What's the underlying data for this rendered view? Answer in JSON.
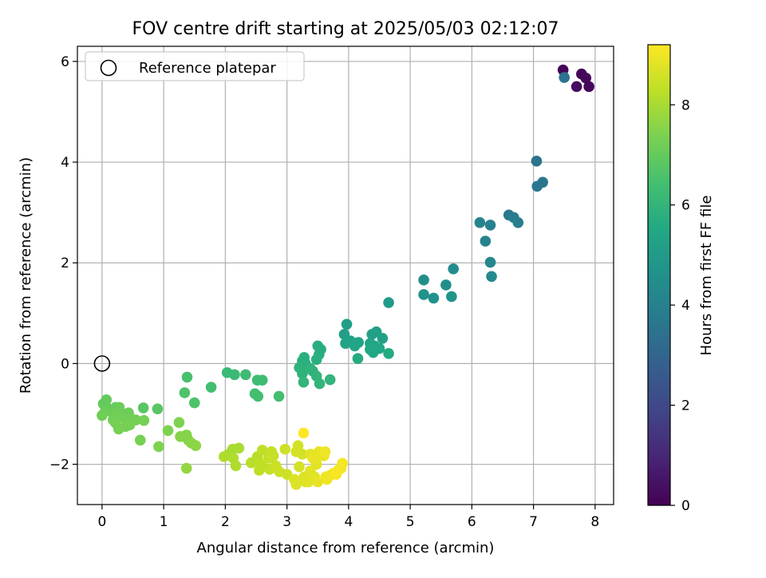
{
  "chart_data": {
    "type": "scatter",
    "title": "FOV centre drift starting at 2025/05/03 02:12:07",
    "xlabel": "Angular distance from reference (arcmin)",
    "ylabel": "Rotation from reference (arcmin)",
    "xlim": [
      -0.4,
      8.3
    ],
    "ylim": [
      -2.8,
      6.3
    ],
    "xticks": [
      0,
      1,
      2,
      3,
      4,
      5,
      6,
      7,
      8
    ],
    "yticks": [
      -2,
      0,
      2,
      4,
      6
    ],
    "grid": true,
    "legend": {
      "placement": "top-left",
      "entries": [
        "Reference platepar"
      ]
    },
    "reference_point": {
      "x": 0,
      "y": 0
    },
    "colorbar": {
      "label": "Hours from first FF file",
      "colormap": "viridis",
      "range": [
        0,
        9.2
      ],
      "ticks": [
        0,
        2,
        4,
        6,
        8
      ]
    },
    "points": [
      {
        "x": 7.48,
        "y": 5.83,
        "c": 0.1
      },
      {
        "x": 7.78,
        "y": 5.75,
        "c": 0.1
      },
      {
        "x": 7.85,
        "y": 5.67,
        "c": 0.2
      },
      {
        "x": 7.9,
        "y": 5.5,
        "c": 0.2
      },
      {
        "x": 7.7,
        "y": 5.5,
        "c": 0.3
      },
      {
        "x": 7.5,
        "y": 5.68,
        "c": 3.5
      },
      {
        "x": 7.05,
        "y": 4.02,
        "c": 3.5
      },
      {
        "x": 7.15,
        "y": 3.6,
        "c": 3.6
      },
      {
        "x": 7.06,
        "y": 3.52,
        "c": 3.6
      },
      {
        "x": 6.6,
        "y": 2.95,
        "c": 3.7
      },
      {
        "x": 6.68,
        "y": 2.9,
        "c": 3.8
      },
      {
        "x": 6.75,
        "y": 2.8,
        "c": 3.9
      },
      {
        "x": 6.3,
        "y": 2.75,
        "c": 4.0
      },
      {
        "x": 6.13,
        "y": 2.8,
        "c": 4.1
      },
      {
        "x": 6.22,
        "y": 2.43,
        "c": 4.1
      },
      {
        "x": 6.3,
        "y": 2.01,
        "c": 4.2
      },
      {
        "x": 6.32,
        "y": 1.73,
        "c": 4.3
      },
      {
        "x": 5.7,
        "y": 1.88,
        "c": 4.4
      },
      {
        "x": 5.22,
        "y": 1.66,
        "c": 4.5
      },
      {
        "x": 5.58,
        "y": 1.56,
        "c": 4.5
      },
      {
        "x": 5.22,
        "y": 1.37,
        "c": 4.6
      },
      {
        "x": 5.38,
        "y": 1.3,
        "c": 4.6
      },
      {
        "x": 5.67,
        "y": 1.33,
        "c": 4.7
      },
      {
        "x": 4.65,
        "y": 1.21,
        "c": 5.0
      },
      {
        "x": 3.97,
        "y": 0.78,
        "c": 5.1
      },
      {
        "x": 3.93,
        "y": 0.58,
        "c": 5.1
      },
      {
        "x": 4.45,
        "y": 0.63,
        "c": 5.2
      },
      {
        "x": 4.38,
        "y": 0.58,
        "c": 5.2
      },
      {
        "x": 4.55,
        "y": 0.5,
        "c": 5.2
      },
      {
        "x": 4.03,
        "y": 0.45,
        "c": 5.3
      },
      {
        "x": 4.16,
        "y": 0.42,
        "c": 5.3
      },
      {
        "x": 3.95,
        "y": 0.4,
        "c": 5.3
      },
      {
        "x": 4.1,
        "y": 0.35,
        "c": 5.4
      },
      {
        "x": 4.35,
        "y": 0.4,
        "c": 5.4
      },
      {
        "x": 4.42,
        "y": 0.35,
        "c": 5.4
      },
      {
        "x": 4.5,
        "y": 0.3,
        "c": 5.5
      },
      {
        "x": 4.35,
        "y": 0.28,
        "c": 5.5
      },
      {
        "x": 4.4,
        "y": 0.22,
        "c": 5.5
      },
      {
        "x": 4.65,
        "y": 0.2,
        "c": 5.6
      },
      {
        "x": 4.15,
        "y": 0.1,
        "c": 5.6
      },
      {
        "x": 3.5,
        "y": 0.35,
        "c": 5.7
      },
      {
        "x": 3.55,
        "y": 0.28,
        "c": 5.7
      },
      {
        "x": 3.52,
        "y": 0.18,
        "c": 5.7
      },
      {
        "x": 3.48,
        "y": 0.08,
        "c": 5.8
      },
      {
        "x": 3.28,
        "y": 0.12,
        "c": 5.8
      },
      {
        "x": 3.25,
        "y": 0.05,
        "c": 5.8
      },
      {
        "x": 3.3,
        "y": 0.0,
        "c": 5.8
      },
      {
        "x": 3.2,
        "y": -0.08,
        "c": 5.9
      },
      {
        "x": 3.38,
        "y": -0.1,
        "c": 5.9
      },
      {
        "x": 3.42,
        "y": -0.15,
        "c": 5.9
      },
      {
        "x": 3.25,
        "y": -0.2,
        "c": 5.9
      },
      {
        "x": 3.48,
        "y": -0.25,
        "c": 6.0
      },
      {
        "x": 3.7,
        "y": -0.32,
        "c": 6.0
      },
      {
        "x": 3.27,
        "y": -0.37,
        "c": 6.0
      },
      {
        "x": 3.53,
        "y": -0.4,
        "c": 6.0
      },
      {
        "x": 2.03,
        "y": -0.18,
        "c": 6.2
      },
      {
        "x": 2.15,
        "y": -0.22,
        "c": 6.2
      },
      {
        "x": 2.33,
        "y": -0.22,
        "c": 6.3
      },
      {
        "x": 2.52,
        "y": -0.33,
        "c": 6.3
      },
      {
        "x": 2.6,
        "y": -0.33,
        "c": 6.3
      },
      {
        "x": 1.77,
        "y": -0.47,
        "c": 6.4
      },
      {
        "x": 2.48,
        "y": -0.6,
        "c": 6.4
      },
      {
        "x": 2.53,
        "y": -0.65,
        "c": 6.4
      },
      {
        "x": 2.87,
        "y": -0.65,
        "c": 6.4
      },
      {
        "x": 1.38,
        "y": -0.27,
        "c": 6.5
      },
      {
        "x": 1.34,
        "y": -0.58,
        "c": 6.6
      },
      {
        "x": 1.5,
        "y": -0.78,
        "c": 6.6
      },
      {
        "x": 0.67,
        "y": -0.88,
        "c": 6.8
      },
      {
        "x": 0.9,
        "y": -0.9,
        "c": 6.8
      },
      {
        "x": 0.07,
        "y": -0.72,
        "c": 7.0
      },
      {
        "x": 0.02,
        "y": -0.8,
        "c": 7.0
      },
      {
        "x": 0.08,
        "y": -0.88,
        "c": 7.0
      },
      {
        "x": 0.22,
        "y": -0.87,
        "c": 7.0
      },
      {
        "x": 0.28,
        "y": -0.87,
        "c": 7.1
      },
      {
        "x": 0.05,
        "y": -0.95,
        "c": 7.1
      },
      {
        "x": 0.18,
        "y": -1.0,
        "c": 7.1
      },
      {
        "x": 0.33,
        "y": -1.0,
        "c": 7.1
      },
      {
        "x": 0.43,
        "y": -0.98,
        "c": 7.1
      },
      {
        "x": 0.0,
        "y": -1.03,
        "c": 7.2
      },
      {
        "x": 0.25,
        "y": -1.03,
        "c": 7.2
      },
      {
        "x": 0.18,
        "y": -1.12,
        "c": 7.2
      },
      {
        "x": 0.38,
        "y": -1.1,
        "c": 7.2
      },
      {
        "x": 0.48,
        "y": -1.1,
        "c": 7.2
      },
      {
        "x": 0.55,
        "y": -1.12,
        "c": 7.2
      },
      {
        "x": 0.68,
        "y": -1.13,
        "c": 7.3
      },
      {
        "x": 0.22,
        "y": -1.18,
        "c": 7.3
      },
      {
        "x": 0.45,
        "y": -1.22,
        "c": 7.3
      },
      {
        "x": 0.38,
        "y": -1.25,
        "c": 7.3
      },
      {
        "x": 0.27,
        "y": -1.3,
        "c": 7.3
      },
      {
        "x": 0.62,
        "y": -1.52,
        "c": 7.3
      },
      {
        "x": 0.92,
        "y": -1.65,
        "c": 7.4
      },
      {
        "x": 1.07,
        "y": -1.33,
        "c": 7.4
      },
      {
        "x": 1.25,
        "y": -1.17,
        "c": 7.4
      },
      {
        "x": 1.27,
        "y": -1.45,
        "c": 7.5
      },
      {
        "x": 1.37,
        "y": -1.42,
        "c": 7.5
      },
      {
        "x": 1.4,
        "y": -1.52,
        "c": 7.5
      },
      {
        "x": 1.45,
        "y": -1.58,
        "c": 7.6
      },
      {
        "x": 1.52,
        "y": -1.63,
        "c": 7.6
      },
      {
        "x": 1.37,
        "y": -2.08,
        "c": 7.7
      },
      {
        "x": 2.12,
        "y": -1.7,
        "c": 8.0
      },
      {
        "x": 2.22,
        "y": -1.68,
        "c": 8.0
      },
      {
        "x": 2.05,
        "y": -1.8,
        "c": 8.0
      },
      {
        "x": 1.98,
        "y": -1.85,
        "c": 8.1
      },
      {
        "x": 2.13,
        "y": -1.88,
        "c": 8.1
      },
      {
        "x": 2.17,
        "y": -2.03,
        "c": 8.1
      },
      {
        "x": 2.42,
        "y": -1.97,
        "c": 8.2
      },
      {
        "x": 2.52,
        "y": -1.85,
        "c": 8.2
      },
      {
        "x": 2.6,
        "y": -1.72,
        "c": 8.3
      },
      {
        "x": 2.55,
        "y": -1.98,
        "c": 8.3
      },
      {
        "x": 2.6,
        "y": -2.05,
        "c": 8.3
      },
      {
        "x": 2.55,
        "y": -2.12,
        "c": 8.3
      },
      {
        "x": 2.7,
        "y": -1.88,
        "c": 8.4
      },
      {
        "x": 2.75,
        "y": -1.75,
        "c": 8.4
      },
      {
        "x": 2.78,
        "y": -1.83,
        "c": 8.4
      },
      {
        "x": 2.72,
        "y": -2.1,
        "c": 8.4
      },
      {
        "x": 2.82,
        "y": -2.03,
        "c": 8.5
      },
      {
        "x": 2.88,
        "y": -2.15,
        "c": 8.5
      },
      {
        "x": 2.97,
        "y": -1.7,
        "c": 8.5
      },
      {
        "x": 3.0,
        "y": -2.2,
        "c": 8.5
      },
      {
        "x": 3.18,
        "y": -1.63,
        "c": 8.6
      },
      {
        "x": 3.15,
        "y": -1.75,
        "c": 8.6
      },
      {
        "x": 3.25,
        "y": -1.8,
        "c": 8.6
      },
      {
        "x": 3.2,
        "y": -2.05,
        "c": 8.6
      },
      {
        "x": 3.12,
        "y": -2.3,
        "c": 8.7
      },
      {
        "x": 3.15,
        "y": -2.4,
        "c": 8.7
      },
      {
        "x": 3.28,
        "y": -2.25,
        "c": 8.7
      },
      {
        "x": 3.3,
        "y": -2.35,
        "c": 8.7
      },
      {
        "x": 3.35,
        "y": -2.35,
        "c": 8.8
      },
      {
        "x": 3.38,
        "y": -1.8,
        "c": 8.8
      },
      {
        "x": 3.38,
        "y": -2.13,
        "c": 8.8
      },
      {
        "x": 3.45,
        "y": -2.25,
        "c": 8.8
      },
      {
        "x": 3.48,
        "y": -2.0,
        "c": 8.8
      },
      {
        "x": 3.42,
        "y": -1.88,
        "c": 8.9
      },
      {
        "x": 3.5,
        "y": -2.35,
        "c": 8.9
      },
      {
        "x": 3.52,
        "y": -1.75,
        "c": 8.9
      },
      {
        "x": 3.5,
        "y": -1.85,
        "c": 8.9
      },
      {
        "x": 3.6,
        "y": -1.83,
        "c": 8.9
      },
      {
        "x": 3.62,
        "y": -1.75,
        "c": 9.0
      },
      {
        "x": 3.63,
        "y": -2.25,
        "c": 9.0
      },
      {
        "x": 3.65,
        "y": -2.3,
        "c": 9.0
      },
      {
        "x": 3.7,
        "y": -2.22,
        "c": 9.0
      },
      {
        "x": 3.75,
        "y": -2.18,
        "c": 9.0
      },
      {
        "x": 3.8,
        "y": -2.2,
        "c": 9.1
      },
      {
        "x": 3.9,
        "y": -1.98,
        "c": 9.1
      },
      {
        "x": 3.88,
        "y": -2.08,
        "c": 9.1
      },
      {
        "x": 3.83,
        "y": -2.12,
        "c": 9.1
      },
      {
        "x": 3.27,
        "y": -1.38,
        "c": 9.2
      }
    ]
  }
}
